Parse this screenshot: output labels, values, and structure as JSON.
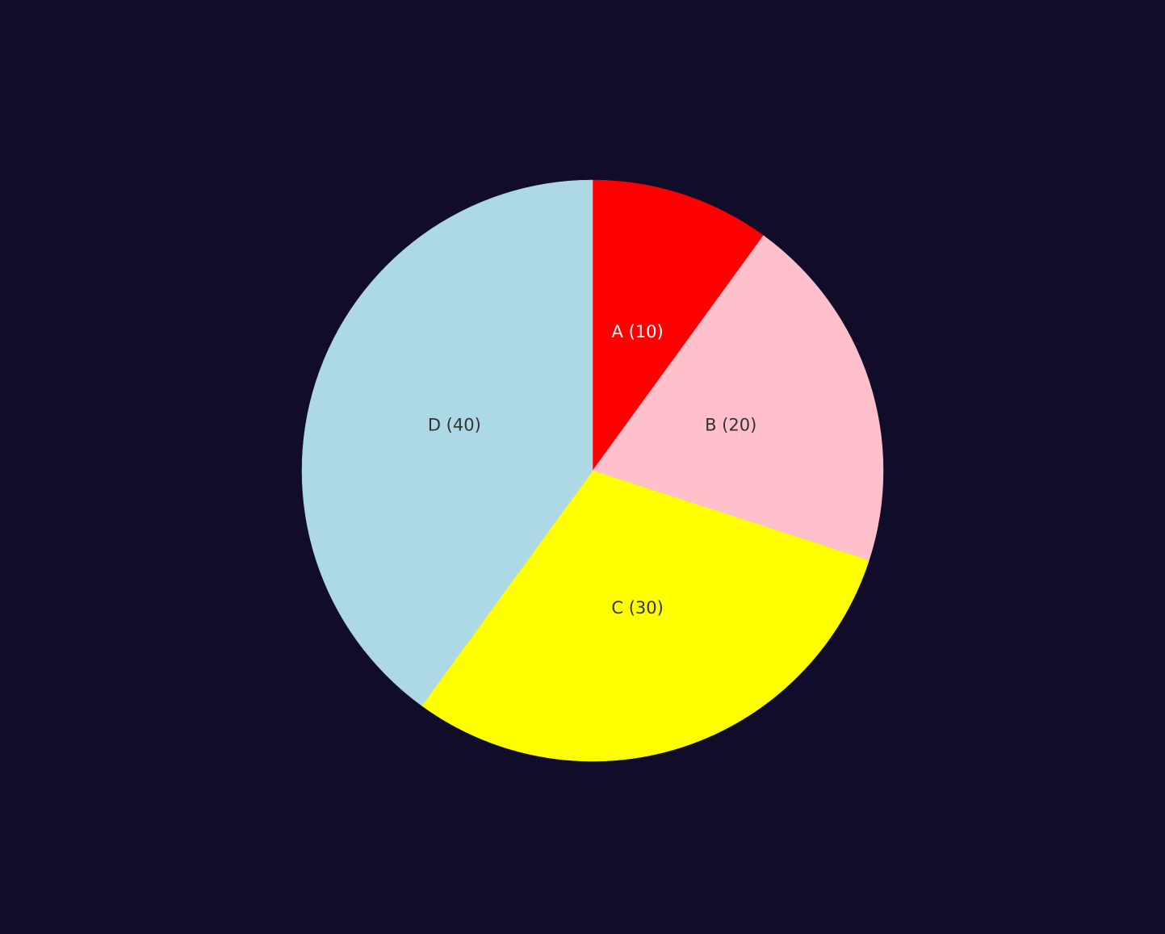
{
  "background_color": "#100c2a",
  "chart_data": {
    "type": "pie",
    "start_angle": "top, clockwise",
    "slices": [
      {
        "label": "A (10)",
        "name": "A",
        "value": 10,
        "color": "#ff0000",
        "label_color": "#ffffff"
      },
      {
        "label": "B (20)",
        "name": "B",
        "value": 20,
        "color": "#ffc0cb",
        "label_color": "#333333"
      },
      {
        "label": "C (30)",
        "name": "C",
        "value": 30,
        "color": "#ffff00",
        "label_color": "#333333"
      },
      {
        "label": "D (40)",
        "name": "D",
        "value": 40,
        "color": "#add8e6",
        "label_color": "#333333"
      }
    ]
  }
}
